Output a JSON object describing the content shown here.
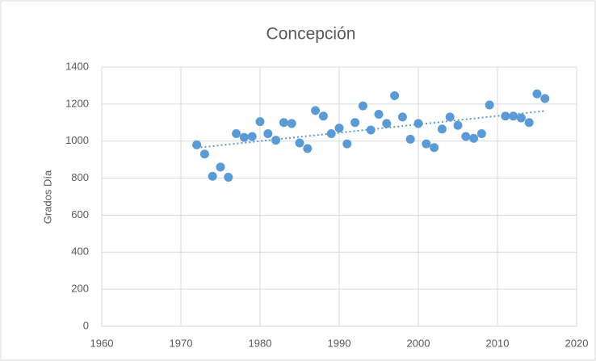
{
  "chart_data": {
    "type": "scatter",
    "title": "Concepción",
    "ylabel": "Grados Día",
    "x": [
      1972,
      1973,
      1974,
      1975,
      1976,
      1977,
      1978,
      1979,
      1980,
      1981,
      1982,
      1983,
      1984,
      1985,
      1986,
      1987,
      1988,
      1989,
      1990,
      1991,
      1992,
      1993,
      1994,
      1995,
      1996,
      1997,
      1998,
      1999,
      2000,
      2001,
      2002,
      2003,
      2004,
      2005,
      2006,
      2007,
      2008,
      2009,
      2011,
      2012,
      2013,
      2014,
      2015,
      2016
    ],
    "values": [
      980,
      930,
      810,
      860,
      805,
      1040,
      1020,
      1025,
      1105,
      1040,
      1005,
      1100,
      1095,
      990,
      960,
      1165,
      1135,
      1040,
      1070,
      985,
      1100,
      1190,
      1060,
      1145,
      1095,
      1245,
      1130,
      1010,
      1095,
      985,
      965,
      1065,
      1130,
      1085,
      1025,
      1015,
      1040,
      1195,
      1135,
      1135,
      1125,
      1100,
      1255,
      1230
    ],
    "color": "#5b9bd5",
    "trendline": true,
    "xlim": [
      1960,
      2020
    ],
    "xticks": [
      1960,
      1970,
      1980,
      1990,
      2000,
      2010,
      2020
    ],
    "ylim": [
      0,
      1400
    ],
    "yticks": [
      0,
      200,
      400,
      600,
      800,
      1000,
      1200,
      1400
    ],
    "grid": true
  }
}
